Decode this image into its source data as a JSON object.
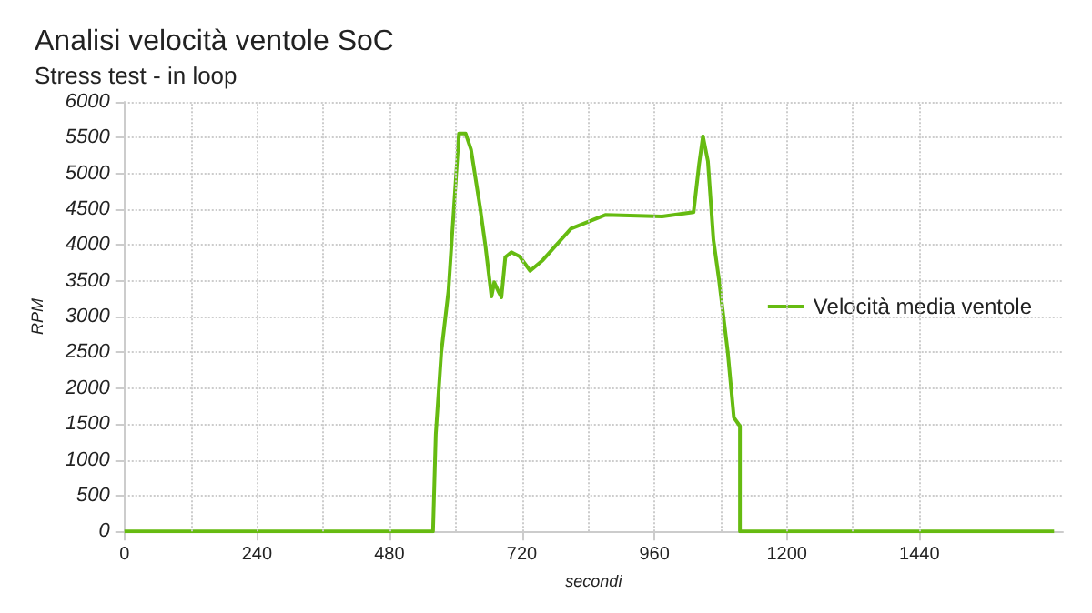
{
  "chart_data": {
    "type": "line",
    "title": "Analisi velocità ventole SoC",
    "subtitle": "Stress test - in loop",
    "xlabel": "secondi",
    "ylabel": "RPM",
    "series": [
      {
        "name": "Velocità media ventole",
        "color": "#66bb11",
        "x": [
          0,
          559,
          564,
          574,
          587,
          595,
          606,
          618,
          628,
          644,
          654,
          665,
          670,
          677,
          683,
          690,
          701,
          716,
          735,
          758,
          809,
          871,
          974,
          1031,
          1041,
          1048,
          1057,
          1067,
          1077,
          1093,
          1104,
          1115,
          1115,
          1684
        ],
        "values": [
          0,
          0,
          1350,
          2500,
          3360,
          4300,
          5560,
          5560,
          5330,
          4540,
          3990,
          3280,
          3480,
          3360,
          3270,
          3830,
          3900,
          3840,
          3640,
          3790,
          4230,
          4420,
          4400,
          4460,
          5130,
          5520,
          5170,
          4070,
          3520,
          2500,
          1590,
          1470,
          0,
          0
        ]
      }
    ],
    "xlim": [
      0,
      1700
    ],
    "xticks": [
      0,
      240,
      480,
      720,
      960,
      1200,
      1440
    ],
    "ylim": [
      0,
      6000
    ],
    "yticks": [
      0,
      500,
      1000,
      1500,
      2000,
      2500,
      3000,
      3500,
      4000,
      4500,
      5000,
      5500,
      6000
    ],
    "grid": true,
    "legend": "right",
    "marker": "none",
    "line_style": "solid"
  }
}
